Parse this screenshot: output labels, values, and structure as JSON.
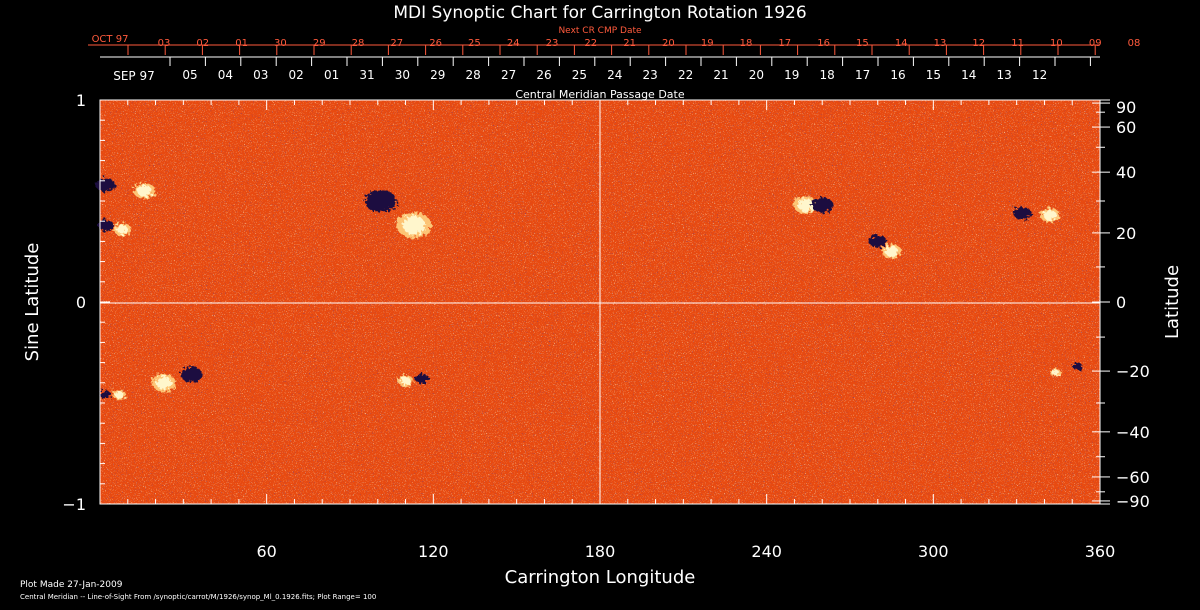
{
  "colors": {
    "background": "#000000",
    "axis": "#ffffff",
    "top_axis": "#ff5a3c",
    "grid": "#ffffff",
    "field_base": "#e84a10",
    "positive": "#fff6cc",
    "negative": "#1a1040"
  },
  "footer": {
    "plot_made": "Plot Made 27-Jan-2009",
    "source": "Central Meridian -- Line-of-Sight From /synoptic/carrot/M/1926/synop_Ml_0.1926.fits; Plot Range= 100"
  },
  "chart_data": {
    "type": "heatmap",
    "title": "MDI Synoptic Chart for Carrington Rotation 1926",
    "xlabel": "Carrington Longitude",
    "ylabel": "Sine Latitude",
    "y2label": "Latitude",
    "xlim": [
      0,
      360
    ],
    "ylim": [
      -1,
      1
    ],
    "grid": true,
    "plot_range": 100,
    "x_ticks": [
      60,
      120,
      180,
      240,
      300,
      360
    ],
    "y_ticks": [
      {
        "label": "1",
        "value": 1
      },
      {
        "label": "0",
        "value": 0
      },
      {
        "label": "−1",
        "value": -1
      }
    ],
    "lat_ticks": [
      {
        "label": "90",
        "value": 90
      },
      {
        "label": "60",
        "value": 60
      },
      {
        "label": "40",
        "value": 40
      },
      {
        "label": "20",
        "value": 20
      },
      {
        "label": "0",
        "value": 0
      },
      {
        "label": "−20",
        "value": -20
      },
      {
        "label": "−40",
        "value": -40
      },
      {
        "label": "−60",
        "value": -60
      },
      {
        "label": "−90",
        "value": -90
      }
    ],
    "top_axis": {
      "title": "Next CR CMP Date",
      "month_label": "OCT 97",
      "days": [
        "03",
        "02",
        "01",
        "30",
        "29",
        "28",
        "27",
        "26",
        "25",
        "24",
        "23",
        "22",
        "21",
        "20",
        "19",
        "18",
        "17",
        "16",
        "15",
        "14",
        "13",
        "12",
        "11",
        "10",
        "09",
        "08"
      ]
    },
    "second_axis": {
      "title": "Central Meridian Passage Date",
      "month_label": "SEP 97",
      "days": [
        "05",
        "04",
        "03",
        "02",
        "01",
        "31",
        "30",
        "29",
        "28",
        "27",
        "26",
        "25",
        "24",
        "23",
        "22",
        "21",
        "20",
        "19",
        "18",
        "17",
        "16",
        "15",
        "14",
        "13",
        "12"
      ]
    },
    "active_regions": [
      {
        "lon": 2,
        "sinlat": 0.58,
        "pos_dlon": 14,
        "pos_dsin": -0.03,
        "size": 1.0
      },
      {
        "lon": 2,
        "sinlat": 0.38,
        "pos_dlon": 6,
        "pos_dsin": -0.02,
        "size": 0.8
      },
      {
        "lon": 101,
        "sinlat": 0.5,
        "pos_dlon": 12,
        "pos_dsin": -0.12,
        "size": 1.6
      },
      {
        "lon": 260,
        "sinlat": 0.48,
        "pos_dlon": -6,
        "pos_dsin": 0.0,
        "size": 1.1
      },
      {
        "lon": 280,
        "sinlat": 0.3,
        "pos_dlon": 5,
        "pos_dsin": -0.05,
        "size": 0.9
      },
      {
        "lon": 332,
        "sinlat": 0.44,
        "pos_dlon": 10,
        "pos_dsin": -0.01,
        "size": 0.9
      },
      {
        "lon": 2,
        "sinlat": -0.46,
        "pos_dlon": 5,
        "pos_dsin": 0.0,
        "size": 0.6
      },
      {
        "lon": 33,
        "sinlat": -0.36,
        "pos_dlon": -10,
        "pos_dsin": -0.04,
        "size": 1.1
      },
      {
        "lon": 116,
        "sinlat": -0.38,
        "pos_dlon": -6,
        "pos_dsin": -0.01,
        "size": 0.7
      },
      {
        "lon": 352,
        "sinlat": -0.32,
        "pos_dlon": -8,
        "pos_dsin": -0.03,
        "size": 0.5
      }
    ]
  }
}
